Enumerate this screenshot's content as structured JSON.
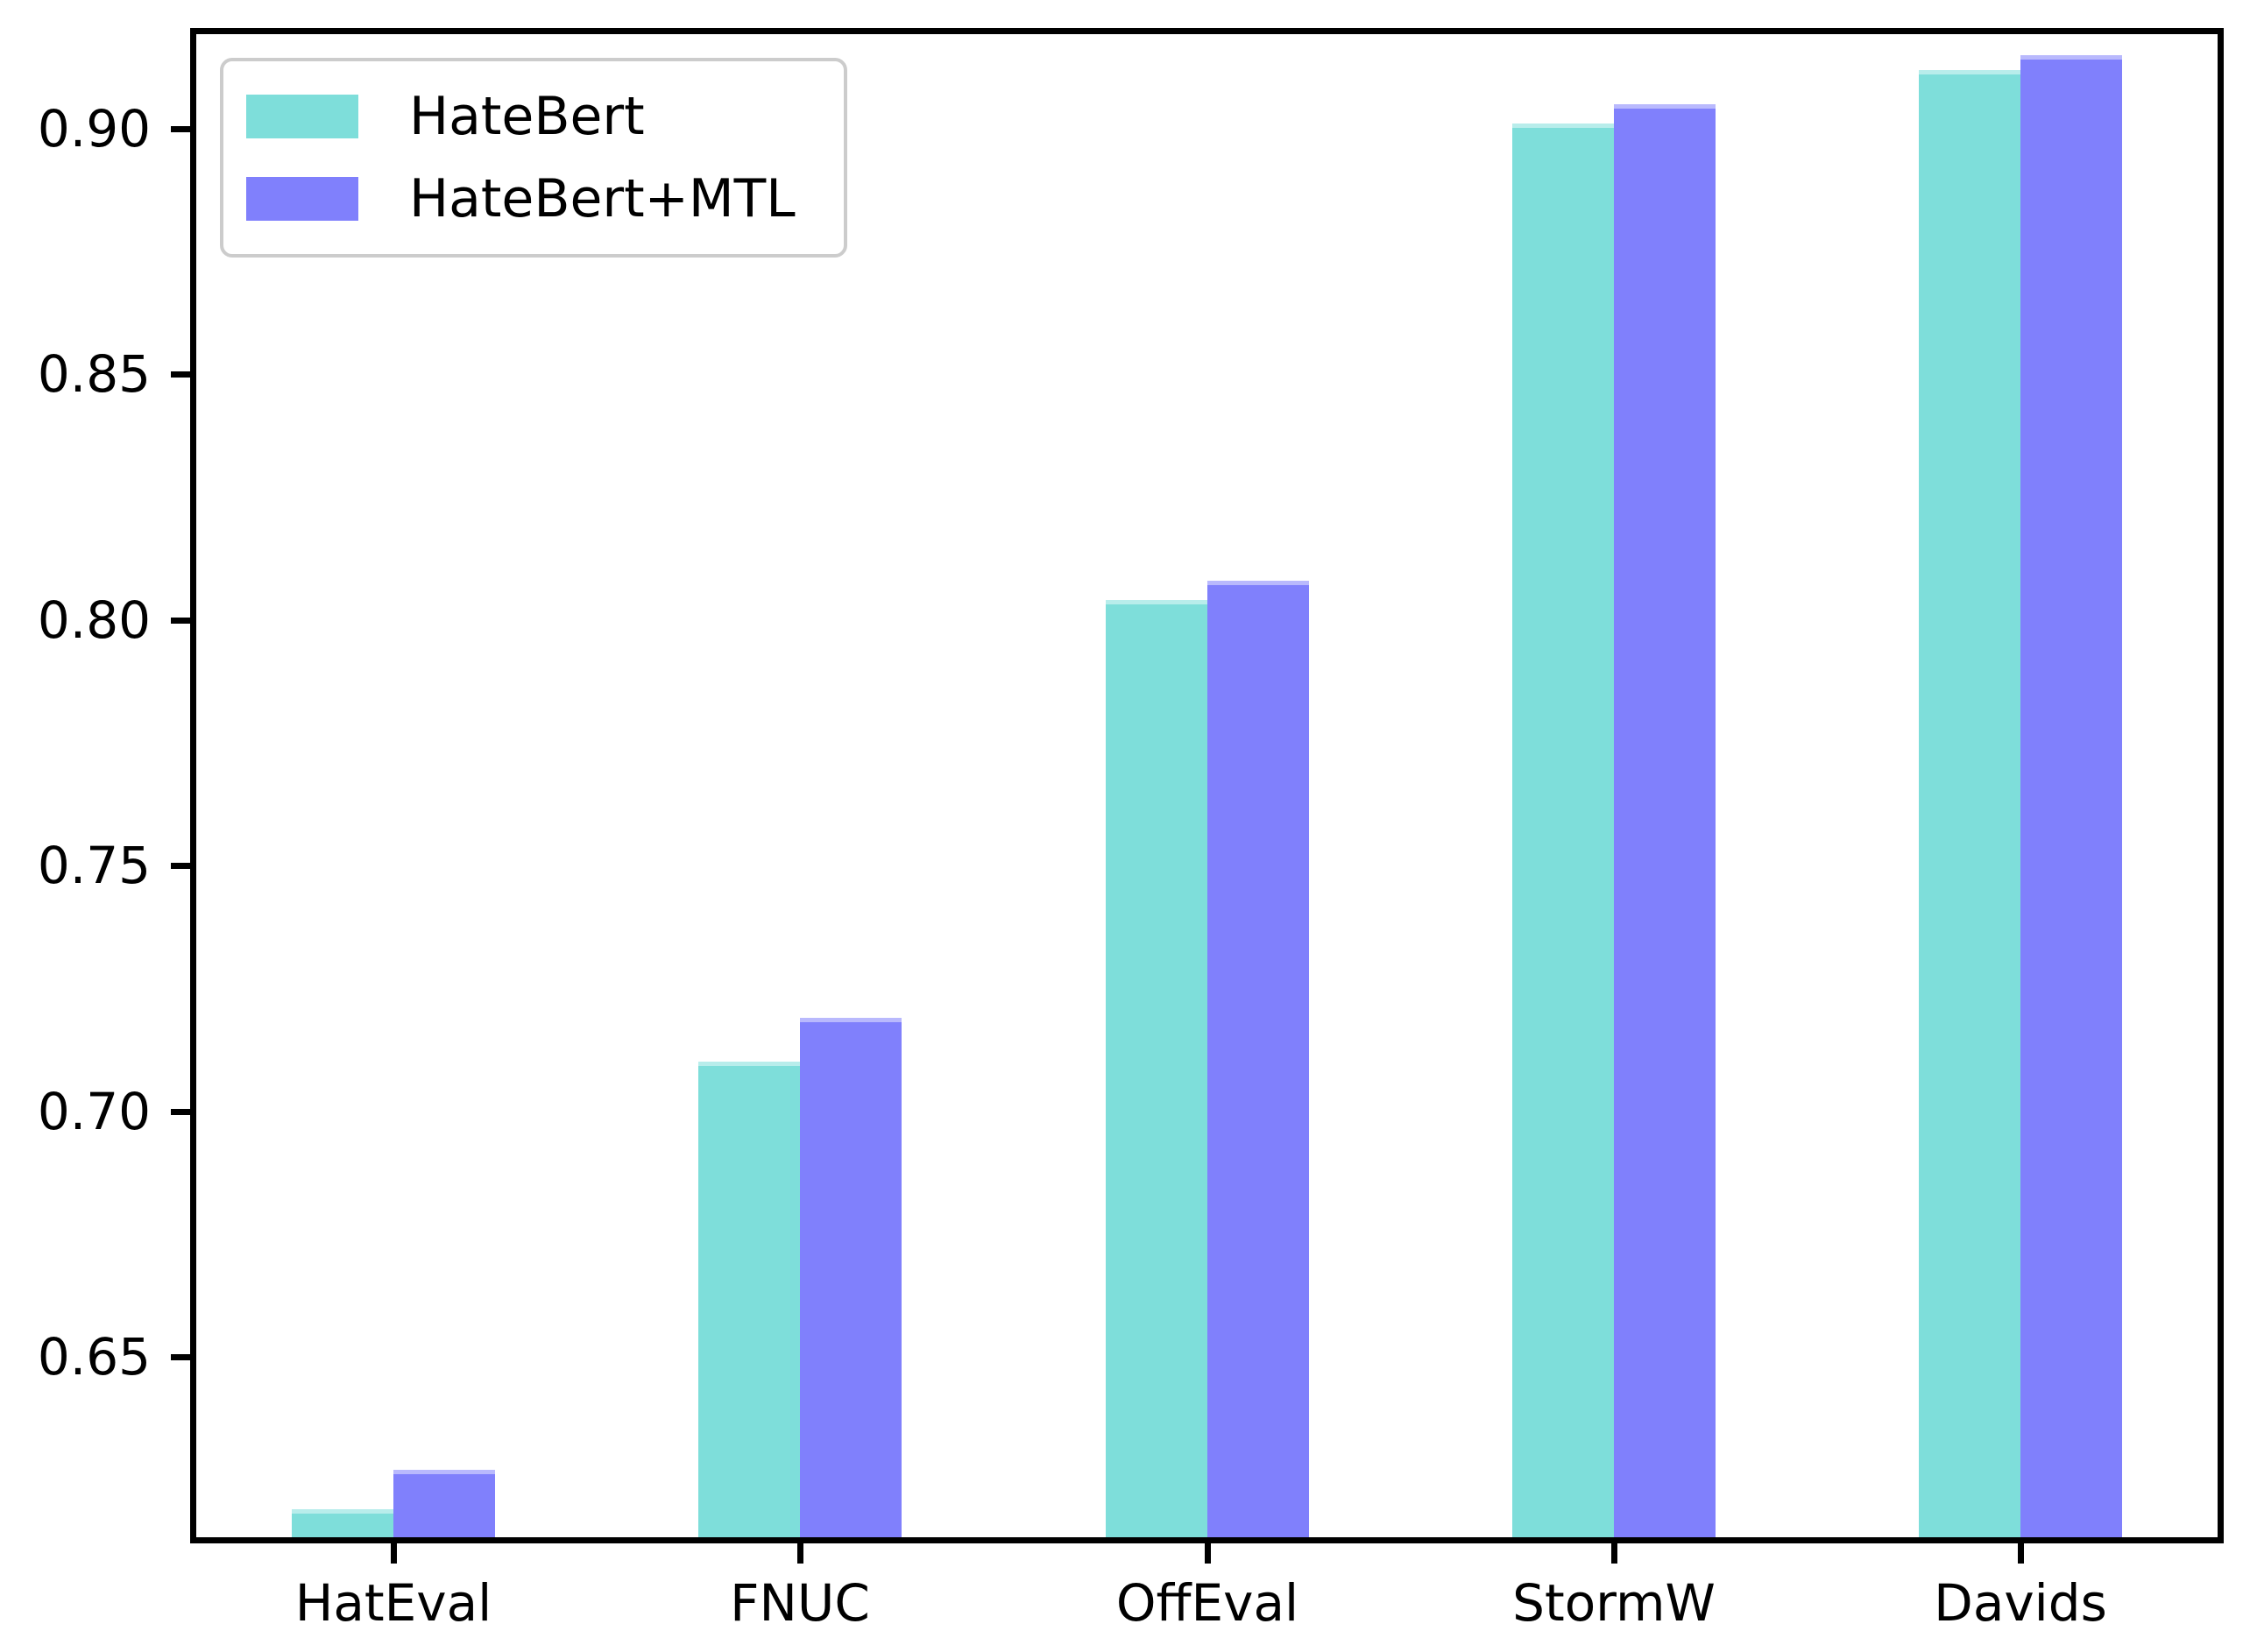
{
  "figure": {
    "background": "#ffffff",
    "spine_color": "#000000",
    "tick_color": "#000000",
    "text_color": "#000000"
  },
  "legend_box": {
    "border_color": "#cccccc",
    "background": "#ffffff",
    "position": "upper left"
  },
  "chart_data": {
    "type": "bar",
    "title": "",
    "xlabel": "",
    "ylabel": "",
    "categories": [
      "HatEval",
      "FNUC",
      "OffEval",
      "StormW",
      "Davids"
    ],
    "series": [
      {
        "name": "HateBert",
        "color": "#7EDEDA",
        "values": [
          0.619,
          0.71,
          0.804,
          0.901,
          0.912
        ]
      },
      {
        "name": "HateBert+MTL",
        "color": "#8080FC",
        "values": [
          0.627,
          0.719,
          0.808,
          0.905,
          0.915
        ]
      }
    ],
    "ylim": [
      0.612,
      0.9205
    ],
    "yticks": [
      0.65,
      0.7,
      0.75,
      0.8,
      0.85,
      0.9
    ],
    "ytick_labels": [
      "0.65",
      "0.70",
      "0.75",
      "0.80",
      "0.85",
      "0.90"
    ],
    "grid": false,
    "legend_position": "upper left",
    "bar_width_fraction": 0.25,
    "bars_clipped_at_axis_bottom": true
  }
}
